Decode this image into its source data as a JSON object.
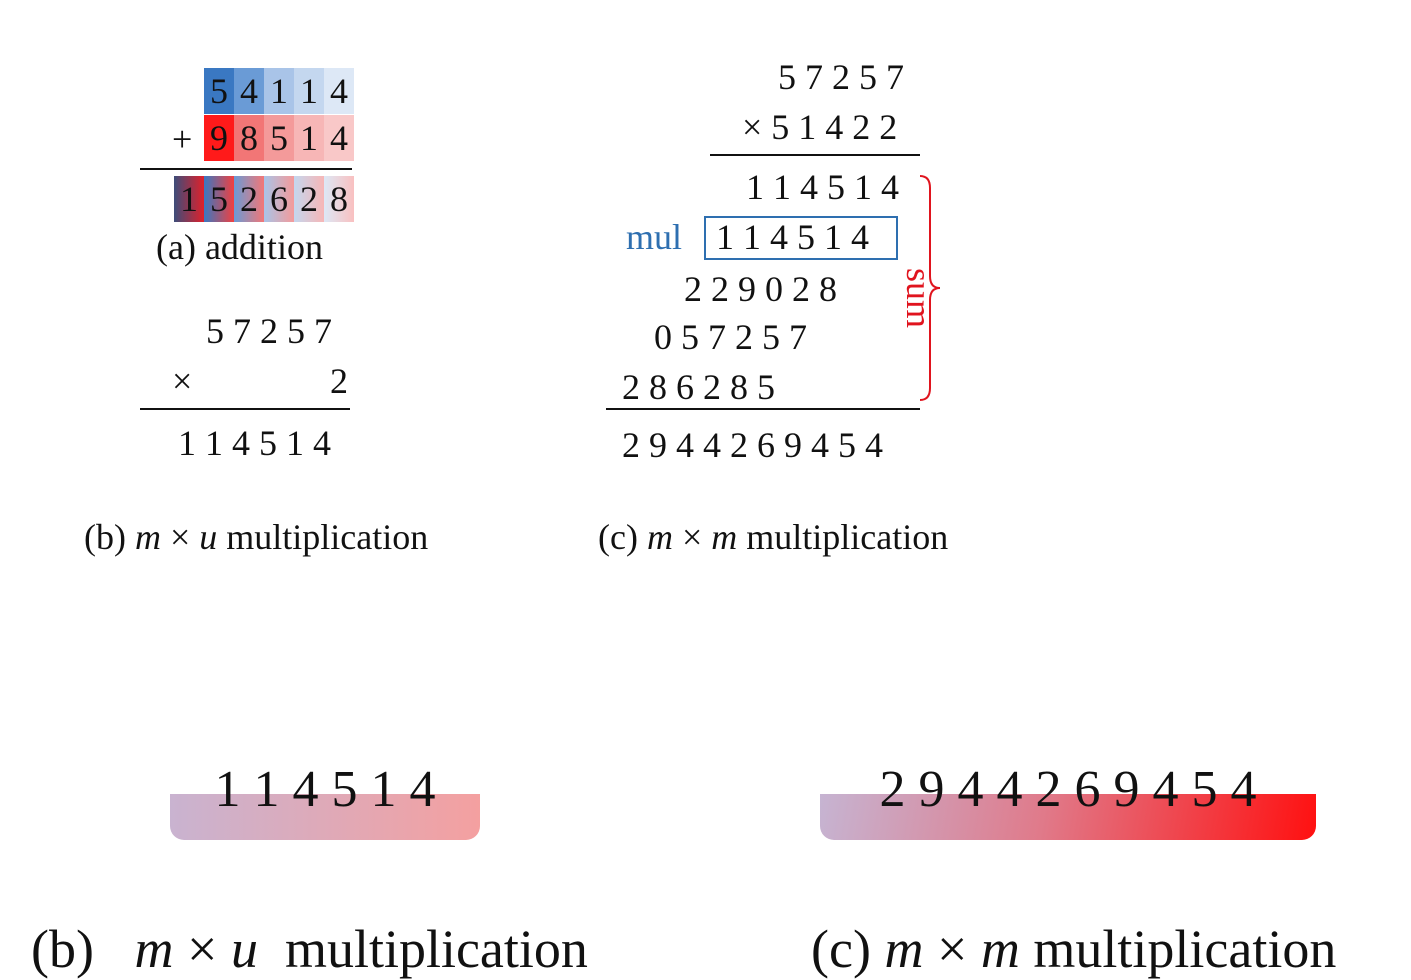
{
  "addition": {
    "row1": [
      "5",
      "4",
      "1",
      "1",
      "4"
    ],
    "row2": [
      "9",
      "8",
      "5",
      "1",
      "4"
    ],
    "plus": "+",
    "result": [
      "1",
      "5",
      "2",
      "6",
      "2",
      "8"
    ],
    "caption": "(a) addition",
    "colors": {
      "row1": [
        "#3a78c2",
        "#6a9bd6",
        "#a9c4e8",
        "#c4d7ef",
        "#dde8f6"
      ],
      "row2": [
        "#ff1a1a",
        "#f27676",
        "#f49a9a",
        "#f7b6b6",
        "#f9c8c8"
      ]
    }
  },
  "mu": {
    "top": "5 7 2 5 7",
    "times": "×",
    "digit": "2",
    "result": "1 1 4 5 1 4",
    "caption_prefix": "(b) ",
    "caption_m": "m",
    "caption_x": " × ",
    "caption_u": "u",
    "caption_suffix": " multiplication"
  },
  "mm": {
    "top": "5 7 2 5 7",
    "second": "× 5 1 4 2 2",
    "p1": "1 1 4 5 1 4",
    "p2": "1 1 4 5 1 4",
    "p3": "2 2 9 0 2 8",
    "p4": "0 5 7 2 5 7",
    "p5": "2 8 6 2 8 5",
    "result": "2 9 4 4 2 6 9 4 5 4",
    "mul_label": "mul",
    "sum_label": "sum",
    "caption_prefix": "(c) ",
    "caption_m1": "m",
    "caption_x": " × ",
    "caption_m2": "m",
    "caption_suffix": " multiplication",
    "mul_color": "#2e6fb0",
    "sum_color": "#e0141e"
  },
  "bottom": {
    "left_digits": "1 1 4 5 1 4",
    "left_caption_prefix": "(b)   ",
    "left_caption_m": "m",
    "left_caption_x": " × ",
    "left_caption_u": "u",
    "left_caption_suffix": "  multiplication",
    "right_digits": "2 9 4 4 2 6 9 4 5 4",
    "right_caption_prefix": "(c) ",
    "right_caption_m1": "m",
    "right_caption_x": " × ",
    "right_caption_m2": "m",
    "right_caption_suffix": " multiplication"
  }
}
